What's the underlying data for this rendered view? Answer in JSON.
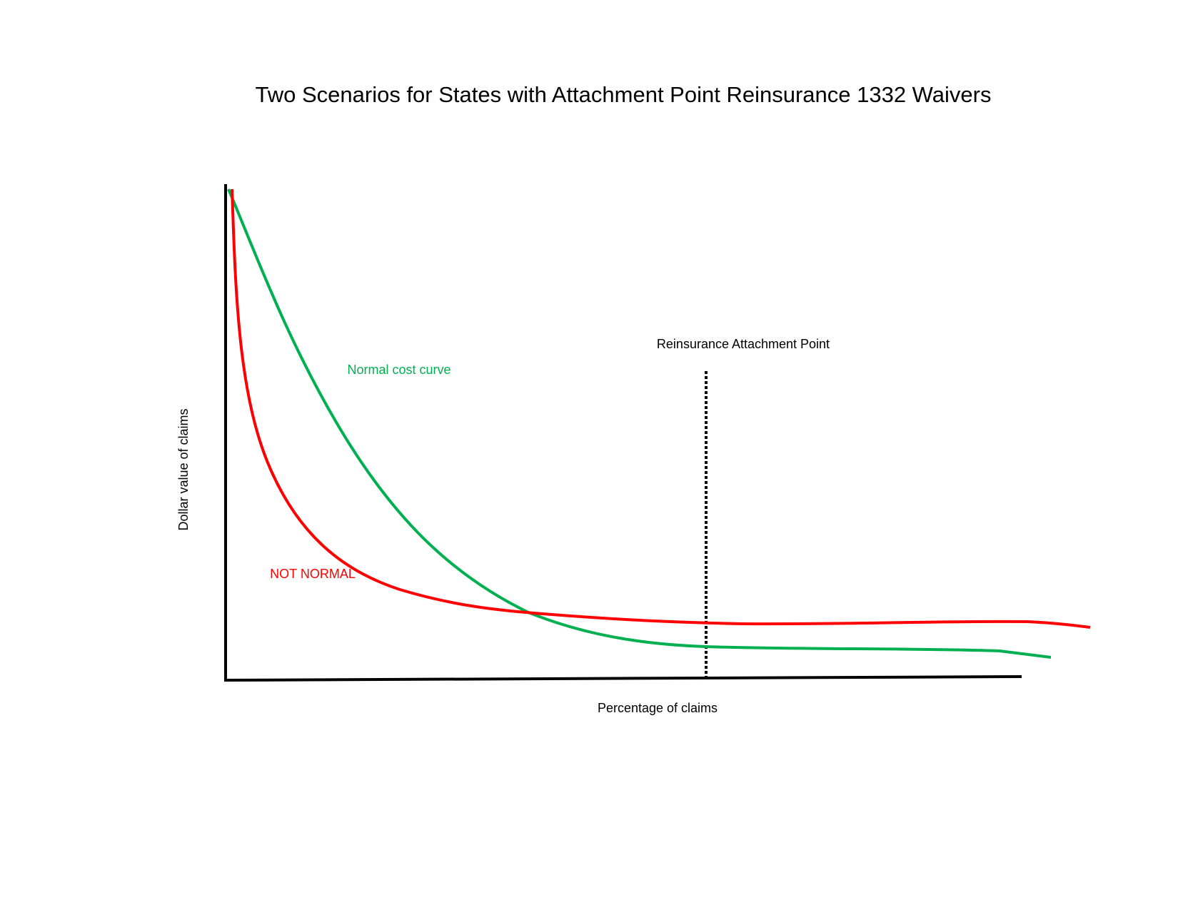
{
  "title": "Two Scenarios  for States with Attachment Point Reinsurance 1332 Waivers",
  "x_axis_label": "Percentage of claims",
  "y_axis_label": "Dollar value of claims",
  "attachment_point_label": "Reinsurance Attachment Point",
  "normal_curve_label": "Normal cost curve",
  "not_normal_curve_label": "NOT NORMAL"
}
